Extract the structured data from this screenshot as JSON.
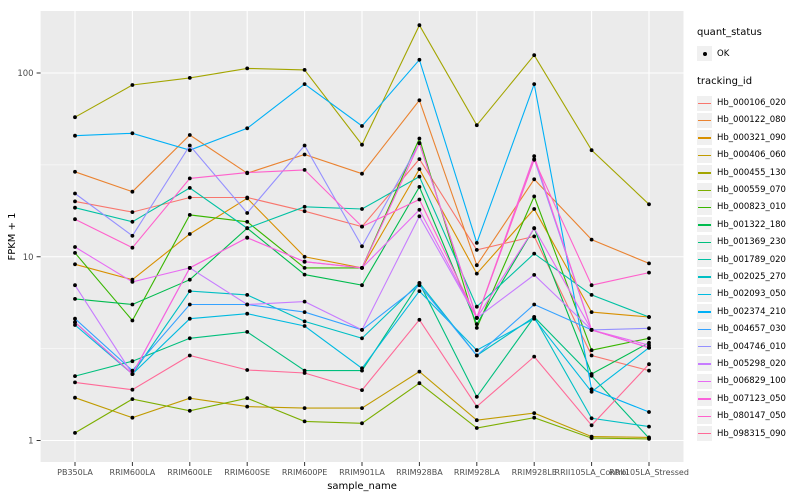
{
  "figure": {
    "panel_bg": "#EBEBEB",
    "grid_color": "#FFFFFF",
    "tick_color": "#333333",
    "axis_text_color": "#4D4D4D",
    "axis_title_color": "#000000",
    "point_color": "#000000",
    "legend_key_bg": "#F0F0F0"
  },
  "chart_data": {
    "type": "line",
    "title": "",
    "xlabel": "sample_name",
    "ylabel": "FPKM + 1",
    "y_scale": "log10",
    "y_ticks": [
      1,
      10,
      100
    ],
    "y_tick_labels": [
      "1",
      "10",
      "100"
    ],
    "y_minor_breaks": [
      3.162,
      31.62
    ],
    "ylim": [
      1,
      220
    ],
    "grid": true,
    "legend_position": "right",
    "categories": [
      "PB350LA",
      "RRIM600LA",
      "RRIM600LE",
      "RRIM600SE",
      "RRIM600PE",
      "RRIM901LA",
      "RRIM928BA",
      "RRIM928LA",
      "RRIM928LE",
      "RRII105LA_Control",
      "RRII105LA_Stressed"
    ],
    "series": [
      {
        "name": "Hb_000106_020",
        "color": "#F8766D",
        "values": [
          20,
          17.5,
          21,
          21,
          17.7,
          14.6,
          34,
          10.9,
          12.9,
          2.9,
          2.4
        ]
      },
      {
        "name": "Hb_000122_080",
        "color": "#EA8331",
        "values": [
          29,
          22.6,
          46,
          28.5,
          36,
          28.3,
          71,
          9.0,
          26.4,
          12.4,
          9.2
        ]
      },
      {
        "name": "Hb_000321_090",
        "color": "#D89000",
        "values": [
          9.1,
          7.5,
          13.3,
          20.8,
          10.0,
          8.7,
          30,
          8.1,
          18.2,
          5.0,
          4.7
        ]
      },
      {
        "name": "Hb_000406_060",
        "color": "#C09B00",
        "values": [
          1.71,
          1.33,
          1.7,
          1.53,
          1.5,
          1.5,
          2.37,
          1.29,
          1.41,
          1.05,
          1.04
        ]
      },
      {
        "name": "Hb_000455_130",
        "color": "#A3A500",
        "values": [
          57.5,
          86,
          94,
          106,
          104,
          40.7,
          182,
          52,
          125,
          38,
          19.3
        ]
      },
      {
        "name": "Hb_000559_070",
        "color": "#7CAE00",
        "values": [
          1.1,
          1.68,
          1.45,
          1.7,
          1.27,
          1.24,
          2.05,
          1.17,
          1.33,
          1.03,
          1.02
        ]
      },
      {
        "name": "Hb_000823_010",
        "color": "#39B600",
        "values": [
          10.5,
          4.5,
          16.9,
          15.5,
          8.7,
          8.7,
          44,
          4.1,
          21.3,
          3.1,
          3.6
        ]
      },
      {
        "name": "Hb_001322_180",
        "color": "#00BB4E",
        "values": [
          5.9,
          5.5,
          7.5,
          14.3,
          8.0,
          7.0,
          24,
          4.3,
          14.3,
          2.3,
          3.4
        ]
      },
      {
        "name": "Hb_001369_230",
        "color": "#00BF7D",
        "values": [
          2.24,
          2.7,
          3.6,
          3.9,
          2.4,
          2.4,
          7.2,
          1.73,
          4.7,
          2.25,
          1.03
        ]
      },
      {
        "name": "Hb_001789_020",
        "color": "#00C1A3",
        "values": [
          18.5,
          15.5,
          23.7,
          14.3,
          18.7,
          18.2,
          27.3,
          5.35,
          10.4,
          6.2,
          4.7
        ]
      },
      {
        "name": "Hb_002025_270",
        "color": "#00BFC4",
        "values": [
          4.4,
          2.3,
          6.5,
          6.2,
          4.45,
          3.6,
          7.2,
          2.9,
          4.7,
          1.32,
          1.19
        ]
      },
      {
        "name": "Hb_002093_050",
        "color": "#00BAE0",
        "values": [
          4.25,
          2.3,
          4.6,
          4.9,
          4.2,
          2.47,
          6.5,
          3.1,
          4.6,
          1.84,
          3.2
        ]
      },
      {
        "name": "Hb_002374_210",
        "color": "#00B0F6",
        "values": [
          45.6,
          47,
          38,
          50,
          87,
          51.5,
          118,
          11.9,
          87,
          1.9,
          1.43
        ]
      },
      {
        "name": "Hb_004657_030",
        "color": "#35A2FF",
        "values": [
          4.6,
          2.4,
          5.5,
          5.5,
          5.0,
          4.0,
          7.0,
          2.9,
          5.5,
          4.0,
          3.2
        ]
      },
      {
        "name": "Hb_004746_010",
        "color": "#9590FF",
        "values": [
          22.1,
          13.0,
          40.3,
          17.3,
          40.3,
          11.4,
          41.5,
          4.65,
          34,
          4.0,
          4.08
        ]
      },
      {
        "name": "Hb_005298_020",
        "color": "#C77CFF",
        "values": [
          7.0,
          2.3,
          8.7,
          5.5,
          5.7,
          4.0,
          16.6,
          4.65,
          7.97,
          4.0,
          3.2
        ]
      },
      {
        "name": "Hb_006829_100",
        "color": "#E76BF3",
        "values": [
          11.3,
          7.3,
          8.7,
          12.7,
          9.4,
          8.7,
          18.0,
          4.65,
          14.3,
          4.0,
          3.3
        ]
      },
      {
        "name": "Hb_007123_050",
        "color": "#FA62DB",
        "values": [
          4.4,
          2.3,
          8.7,
          12.7,
          9.4,
          8.7,
          41.5,
          4.65,
          35.3,
          4.0,
          3.2
        ]
      },
      {
        "name": "Hb_080147_050",
        "color": "#FF61CC",
        "values": [
          16.0,
          11.2,
          26.7,
          28.7,
          29.7,
          14.6,
          20.5,
          4.65,
          33.7,
          7.0,
          8.2
        ]
      },
      {
        "name": "Hb_098315_090",
        "color": "#FF6A98",
        "values": [
          2.07,
          1.89,
          2.9,
          2.42,
          2.33,
          1.88,
          4.54,
          1.53,
          2.86,
          1.21,
          2.6
        ]
      }
    ],
    "legend": {
      "quant_status_title": "quant_status",
      "quant_status_items": [
        {
          "label": "OK",
          "marker": "point"
        }
      ],
      "tracking_title": "tracking_id"
    }
  }
}
